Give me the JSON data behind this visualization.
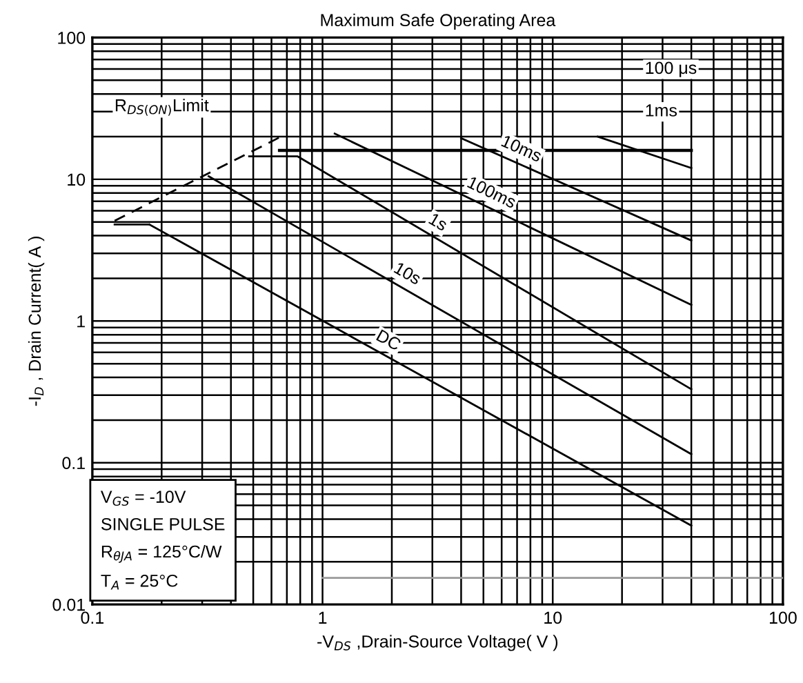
{
  "chart_data": {
    "type": "line",
    "title": "Maximum Safe Operating Area",
    "xlabel": "-V$_{DS}$ ,Drain-Source Voltage( V )",
    "ylabel": "-I$_{D}$ , Drain Current( A )",
    "log": "xy",
    "grid": true,
    "marker": "none",
    "xlim": [
      0.1,
      100
    ],
    "ylim": [
      0.01,
      100
    ],
    "xticks": [
      0.1,
      1,
      10,
      100
    ],
    "yticks": [
      0.01,
      0.1,
      1,
      10,
      100
    ],
    "series": [
      {
        "color": "#000000",
        "line_style": "dashed",
        "x": [
          0.125,
          0.66
        ],
        "values": [
          5.1,
          20
        ]
      },
      {
        "color": "#000000",
        "x": [
          0.125,
          0.177
        ],
        "values": [
          4.8,
          4.8
        ]
      },
      {
        "color": "#000000",
        "x": [
          0.65,
          40
        ],
        "values": [
          16,
          16
        ]
      },
      {
        "color": "#000000",
        "x": [
          15.7,
          40
        ],
        "values": [
          20,
          12
        ]
      },
      {
        "color": "#000000",
        "x": [
          4,
          40
        ],
        "values": [
          19.5,
          3.7
        ]
      },
      {
        "color": "#000000",
        "x": [
          1.13,
          40
        ],
        "values": [
          21,
          1.3
        ]
      },
      {
        "color": "#000000",
        "x": [
          0.48,
          0.78,
          40
        ],
        "values": [
          14.5,
          14.5,
          0.33
        ]
      },
      {
        "color": "#000000",
        "x": [
          0.32,
          40
        ],
        "values": [
          10.5,
          0.115
        ]
      },
      {
        "color": "#000000",
        "x": [
          0.177,
          40
        ],
        "values": [
          4.8,
          0.036
        ]
      },
      {
        "color": "#999999",
        "x": [
          1,
          100
        ],
        "values": [
          0.0154,
          0.0154
        ]
      }
    ],
    "annotations": [
      "R$_{DS(ON)}$Limit",
      "100 μs",
      "1ms",
      "10ms",
      "100ms",
      "1s",
      "10s",
      "DC",
      "V$_{GS}$ = -10V",
      "SINGLE PULSE",
      "R$_{θJA}$ = 125°C/W",
      "T$_{A}$ = 25°C"
    ]
  }
}
